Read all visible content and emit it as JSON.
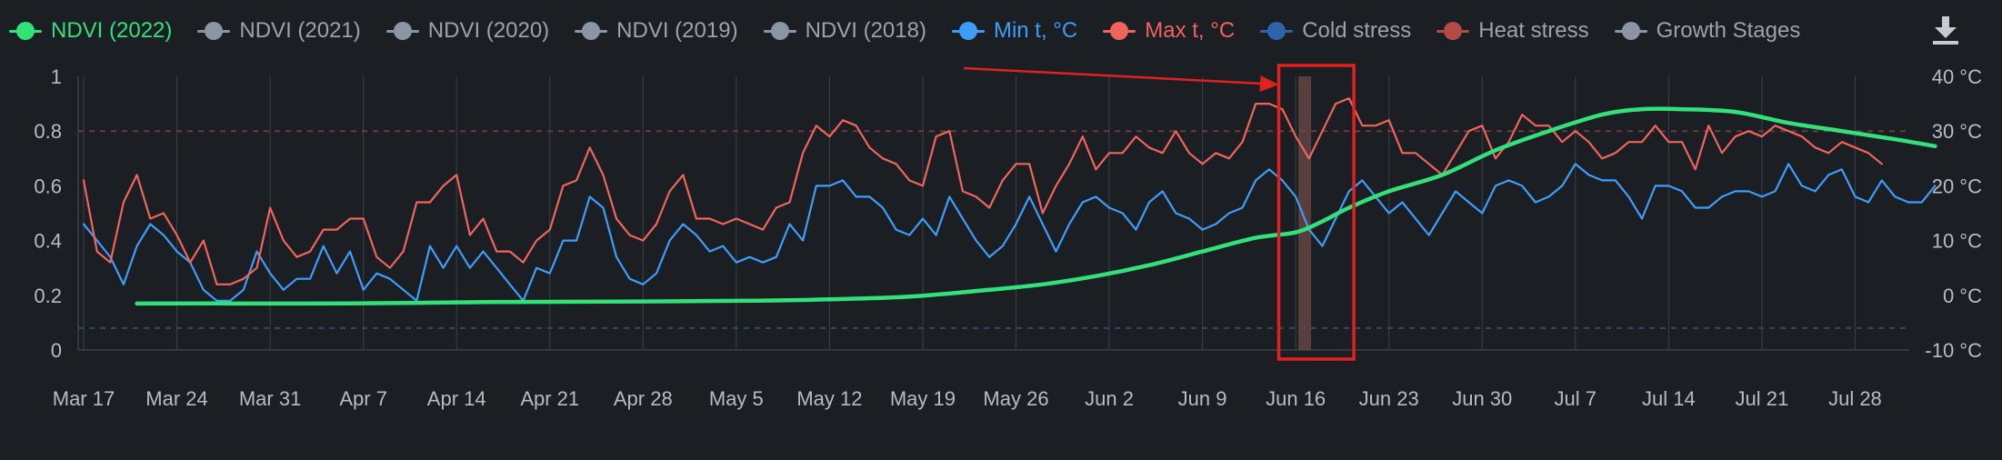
{
  "legend": [
    {
      "label": "NDVI (2022)",
      "color": "#34e07a",
      "active": true
    },
    {
      "label": "NDVI (2021)",
      "color": "#8b95a3",
      "active": false
    },
    {
      "label": "NDVI (2020)",
      "color": "#8b95a3",
      "active": false
    },
    {
      "label": "NDVI (2019)",
      "color": "#8b95a3",
      "active": false
    },
    {
      "label": "NDVI (2018)",
      "color": "#8b95a3",
      "active": false
    },
    {
      "label": "Min t, °C",
      "color": "#3d9dfb",
      "active": true
    },
    {
      "label": "Max t, °C",
      "color": "#f0645c",
      "active": true
    },
    {
      "label": "Cold stress",
      "color": "#2f64ad",
      "active": false
    },
    {
      "label": "Heat stress",
      "color": "#b34a45",
      "active": false
    },
    {
      "label": "Growth Stages",
      "color": "#8b95a3",
      "active": false
    }
  ],
  "download_icon": "download-icon",
  "colors": {
    "background": "#1b1f24",
    "grid": "#3a4048",
    "ndvi": "#34e07a",
    "min_t": "#3d9dfb",
    "max_t": "#f0645c",
    "heat_threshold": "#6b3a3a",
    "cold_threshold": "#2e4a6a",
    "highlight_box": "#e0211f",
    "highlight_band": "#6e4a44",
    "arrow": "#e0211f"
  },
  "chart_data": {
    "type": "line",
    "x_labels": [
      "Mar 17",
      "Mar 24",
      "Mar 31",
      "Apr 7",
      "Apr 14",
      "Apr 21",
      "Apr 28",
      "May 5",
      "May 12",
      "May 19",
      "May 26",
      "Jun 2",
      "Jun 9",
      "Jun 16",
      "Jun 23",
      "Jun 30",
      "Jul 7",
      "Jul 14",
      "Jul 21",
      "Jul 28"
    ],
    "y_left_ticks": [
      "0",
      "0.2",
      "0.4",
      "0.6",
      "0.8",
      "1"
    ],
    "y_left_range": [
      0,
      1
    ],
    "y_right_ticks": [
      "-10 °C",
      "0 °C",
      "10 °C",
      "20 °C",
      "30 °C",
      "40 °C"
    ],
    "y_right_range": [
      -10,
      40
    ],
    "heat_stress_threshold_c": 30,
    "cold_stress_threshold_c": -6,
    "grid": true,
    "highlight": {
      "label": "Jun 16",
      "from_day": 90,
      "to_day": 94
    },
    "series": [
      {
        "name": "NDVI (2022)",
        "axis": "left",
        "points": [
          [
            4,
            0.17
          ],
          [
            10,
            0.17
          ],
          [
            20,
            0.17
          ],
          [
            30,
            0.175
          ],
          [
            40,
            0.177
          ],
          [
            50,
            0.18
          ],
          [
            56,
            0.185
          ],
          [
            62,
            0.195
          ],
          [
            68,
            0.22
          ],
          [
            72,
            0.24
          ],
          [
            76,
            0.27
          ],
          [
            80,
            0.31
          ],
          [
            84,
            0.36
          ],
          [
            88,
            0.41
          ],
          [
            91,
            0.43
          ],
          [
            93,
            0.47
          ],
          [
            95,
            0.52
          ],
          [
            98,
            0.58
          ],
          [
            102,
            0.64
          ],
          [
            106,
            0.73
          ],
          [
            110,
            0.8
          ],
          [
            114,
            0.86
          ],
          [
            117,
            0.88
          ],
          [
            120,
            0.88
          ],
          [
            124,
            0.87
          ],
          [
            128,
            0.83
          ],
          [
            132,
            0.8
          ],
          [
            136,
            0.77
          ],
          [
            139,
            0.745
          ]
        ]
      },
      {
        "name": "Min t, °C",
        "axis": "right",
        "values": [
          13,
          10,
          7,
          2,
          9,
          13,
          11,
          8,
          6,
          1,
          -1,
          -1,
          1,
          8,
          4,
          1,
          3,
          3,
          9,
          4,
          8,
          1,
          4,
          3,
          1,
          -1,
          9,
          5,
          9,
          5,
          8,
          5,
          2,
          -1,
          5,
          4,
          10,
          10,
          18,
          16,
          7,
          3,
          2,
          4,
          10,
          13,
          11,
          8,
          9,
          6,
          7,
          6,
          7,
          13,
          10,
          20,
          20,
          21,
          18,
          18,
          16,
          12,
          11,
          14,
          11,
          18,
          14,
          10,
          7,
          9,
          13,
          18,
          13,
          8,
          13,
          17,
          18,
          16,
          15,
          12,
          17,
          19,
          15,
          14,
          12,
          13,
          15,
          16,
          21,
          23,
          21,
          18,
          12,
          9,
          14,
          19,
          21,
          18,
          15,
          17,
          14,
          11,
          15,
          19,
          17,
          15,
          20,
          21,
          20,
          17,
          18,
          20,
          24,
          22,
          21,
          21,
          18,
          14,
          20,
          20,
          19,
          16,
          16,
          18,
          19,
          19,
          18,
          19,
          24,
          20,
          19,
          22,
          23,
          18,
          17,
          21,
          18,
          17,
          17,
          20
        ]
      },
      {
        "name": "Max t, °C",
        "axis": "right",
        "values": [
          21,
          8,
          6,
          17,
          22,
          14,
          15,
          11,
          6,
          10,
          2,
          2,
          3,
          5,
          16,
          10,
          7,
          8,
          12,
          12,
          14,
          14,
          7,
          5,
          8,
          17,
          17,
          20,
          22,
          11,
          14,
          8,
          8,
          6,
          10,
          12,
          20,
          21,
          27,
          22,
          14,
          11,
          10,
          13,
          19,
          22,
          14,
          14,
          13,
          14,
          13,
          12,
          16,
          17,
          26,
          31,
          29,
          32,
          31,
          27,
          25,
          24,
          21,
          20,
          29,
          30,
          19,
          18,
          16,
          21,
          24,
          24,
          15,
          20,
          24,
          29,
          23,
          26,
          26,
          29,
          27,
          26,
          30,
          26,
          24,
          26,
          25,
          28,
          35,
          35,
          34,
          29,
          25,
          30,
          35,
          36,
          31,
          31,
          32,
          26,
          26,
          24,
          22,
          26,
          30,
          31,
          25,
          28,
          33,
          31,
          31,
          28,
          30,
          28,
          25,
          26,
          28,
          28,
          31,
          28,
          28,
          23,
          31,
          26,
          29,
          30,
          29,
          31,
          30,
          29,
          27,
          26,
          28,
          27,
          26,
          24
        ]
      }
    ]
  }
}
